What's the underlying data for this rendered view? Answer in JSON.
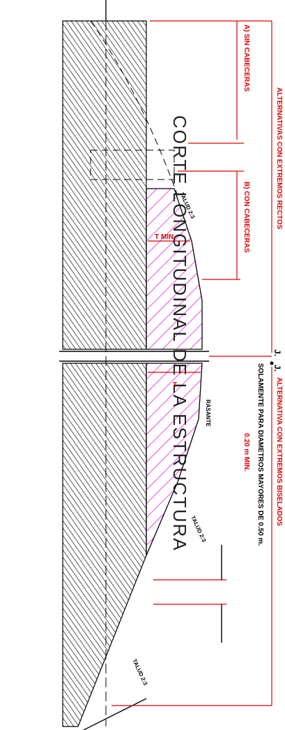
{
  "title": "CORTE LONGITUDINAL DE LA ESTRUCTURA",
  "labels": {
    "sin_cabeceras": "A) SIN CABECERAS",
    "con_cabeceras": "B) CON CABECERAS",
    "extremos_rectos": "ALTERNATIVAS CON EXTREMOS RECTOS",
    "joint_1": "J.",
    "joint_2": "J.",
    "extremos_biselados": "ALTERNATIVA CON EXTREMOS BISELADOS",
    "solamente": "SOLAMENTE PARA DIAMETROS MAYORES DE 0.50 m.",
    "min_020": "0.20 m MIN.",
    "rasante": "RASANTE",
    "t_min": "T MIN.",
    "t": "T",
    "talud_1": "TALUD 2:3",
    "talud_2": "TALUD 2:3",
    "talud_3": "TALUD 2:3"
  }
}
